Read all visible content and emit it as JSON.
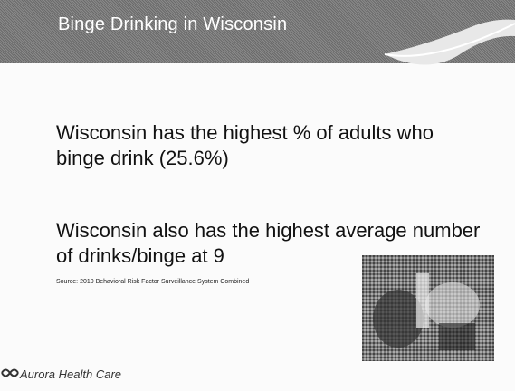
{
  "slide": {
    "title": "Binge Drinking in Wisconsin",
    "bullets": [
      "Wisconsin has the highest % of adults who binge drink (25.6%)",
      "Wisconsin also has the highest average number of drinks/binge at 9"
    ],
    "source": "Source: 2010 Behavioral Risk Factor Surveillance System Combined",
    "logo": "Aurora Health Care"
  }
}
